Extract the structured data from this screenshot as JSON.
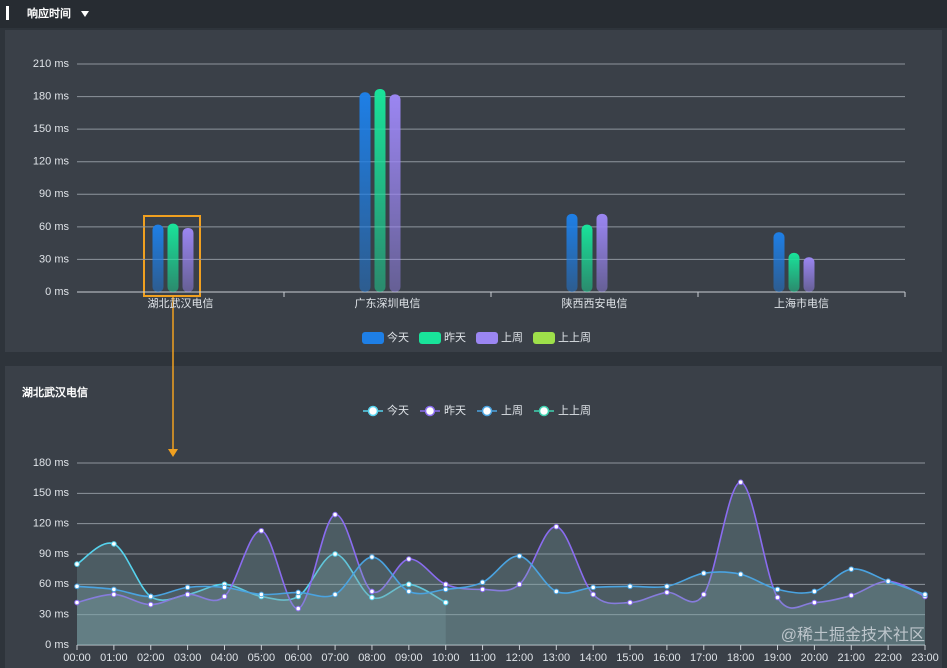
{
  "header": {
    "title": "响应时间"
  },
  "watermark": "@稀土掘金技术社区",
  "chart_data": [
    {
      "type": "bar",
      "categories": [
        "湖北武汉电信",
        "广东深圳电信",
        "陕西西安电信",
        "上海市电信"
      ],
      "series": [
        {
          "name": "今天",
          "color": "#1e7fe6",
          "values": [
            62,
            184,
            72,
            55
          ]
        },
        {
          "name": "昨天",
          "color": "#19e39a",
          "values": [
            63,
            187,
            62,
            36
          ]
        },
        {
          "name": "上周",
          "color": "#9b86f2",
          "values": [
            59,
            182,
            72,
            32
          ]
        },
        {
          "name": "上上周",
          "color": "#9ee04a",
          "values": [
            null,
            null,
            null,
            null
          ]
        }
      ],
      "ylim": [
        0,
        210
      ],
      "yticks": [
        {
          "value": 0,
          "label": "0 ms"
        },
        {
          "value": 30,
          "label": "30 ms"
        },
        {
          "value": 60,
          "label": "60 ms"
        },
        {
          "value": 90,
          "label": "90 ms"
        },
        {
          "value": 120,
          "label": "120 ms"
        },
        {
          "value": 150,
          "label": "150 ms"
        },
        {
          "value": 180,
          "label": "180 ms"
        },
        {
          "value": 210,
          "label": "210 ms"
        }
      ],
      "grid": true
    },
    {
      "type": "line",
      "title": "湖北武汉电信",
      "categories": [
        "00:00",
        "01:00",
        "02:00",
        "03:00",
        "04:00",
        "05:00",
        "06:00",
        "07:00",
        "08:00",
        "09:00",
        "10:00",
        "11:00",
        "12:00",
        "13:00",
        "14:00",
        "15:00",
        "16:00",
        "17:00",
        "18:00",
        "19:00",
        "20:00",
        "21:00",
        "22:00",
        "23:00"
      ],
      "series": [
        {
          "name": "今天",
          "color": "#56d3ee",
          "values": [
            80,
            100,
            48,
            50,
            60,
            48,
            48,
            90,
            47,
            60,
            42,
            null,
            null,
            null,
            null,
            null,
            null,
            null,
            null,
            null,
            null,
            null,
            null,
            null
          ]
        },
        {
          "name": "昨天",
          "color": "#8a6cf0",
          "values": [
            42,
            50,
            40,
            50,
            48,
            113,
            36,
            129,
            53,
            85,
            60,
            55,
            60,
            117,
            50,
            42,
            52,
            50,
            161,
            47,
            42,
            49,
            63,
            48
          ]
        },
        {
          "name": "上周",
          "color": "#4aa3e0",
          "values": [
            58,
            55,
            48,
            57,
            57,
            50,
            52,
            50,
            87,
            53,
            55,
            62,
            88,
            53,
            57,
            58,
            58,
            71,
            70,
            55,
            53,
            75,
            63,
            50
          ]
        },
        {
          "name": "上上周",
          "color": "#3fd1b0",
          "values": [
            null,
            null,
            null,
            null,
            null,
            null,
            null,
            null,
            null,
            null,
            null,
            null,
            null,
            null,
            null,
            null,
            null,
            null,
            null,
            null,
            null,
            null,
            null,
            null
          ]
        }
      ],
      "ylim": [
        0,
        180
      ],
      "yticks": [
        {
          "value": 0,
          "label": "0 ms"
        },
        {
          "value": 30,
          "label": "30 ms"
        },
        {
          "value": 60,
          "label": "60 ms"
        },
        {
          "value": 90,
          "label": "90 ms"
        },
        {
          "value": 120,
          "label": "120 ms"
        },
        {
          "value": 150,
          "label": "150 ms"
        },
        {
          "value": 180,
          "label": "180 ms"
        }
      ],
      "grid": true
    }
  ]
}
